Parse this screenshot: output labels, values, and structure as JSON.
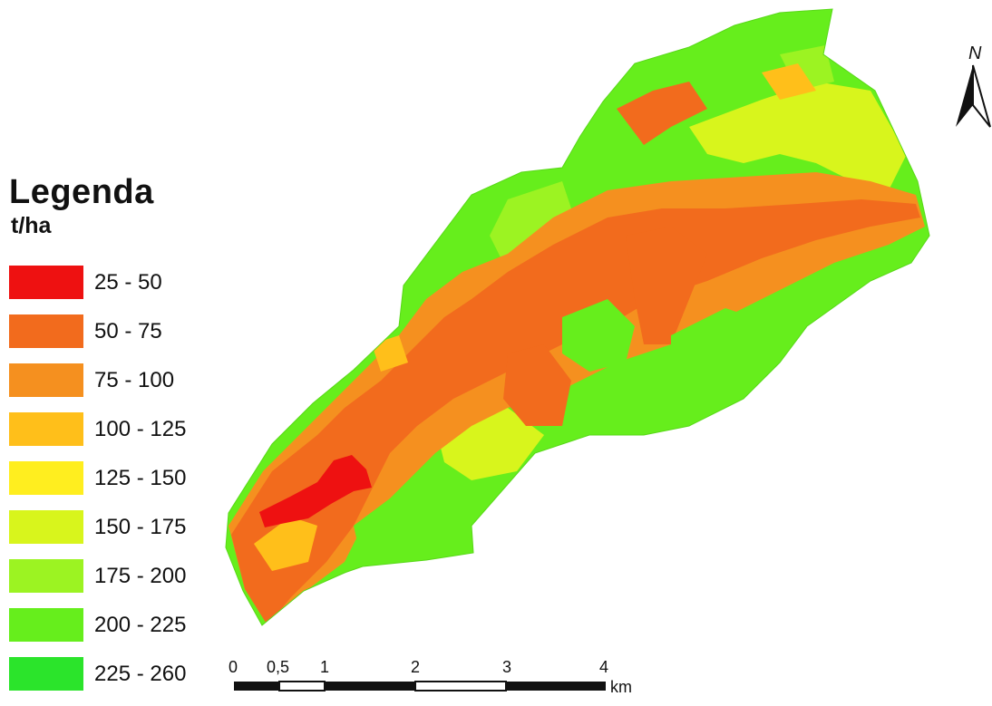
{
  "legend": {
    "title": "Legenda",
    "unit": "t/ha",
    "classes": [
      {
        "label": "25 - 50",
        "color": "#ee1111"
      },
      {
        "label": "50 - 75",
        "color": "#f26b1d"
      },
      {
        "label": "75 - 100",
        "color": "#f5901f"
      },
      {
        "label": "100 - 125",
        "color": "#ffbf1a"
      },
      {
        "label": "125 - 150",
        "color": "#ffee1f"
      },
      {
        "label": "150 - 175",
        "color": "#d8f51c"
      },
      {
        "label": "175 - 200",
        "color": "#9cf322"
      },
      {
        "label": "200 - 225",
        "color": "#66ee1c"
      },
      {
        "label": "225 - 260",
        "color": "#2be42b"
      }
    ]
  },
  "scale_bar": {
    "ticks": [
      "0",
      "0,5",
      "1",
      "2",
      "3",
      "4"
    ],
    "unit": "km"
  },
  "north_arrow": {
    "label": "N",
    "icon": "north-arrow-icon"
  }
}
